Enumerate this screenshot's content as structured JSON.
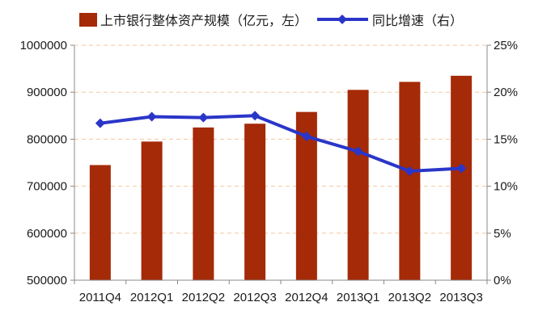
{
  "chart_data": {
    "type": "bar",
    "categories": [
      "2011Q4",
      "2012Q1",
      "2012Q2",
      "2012Q3",
      "2012Q4",
      "2013Q1",
      "2013Q2",
      "2013Q3"
    ],
    "series": [
      {
        "name": "上市银行整体资产规模（亿元，左）",
        "type": "bar",
        "axis": "left",
        "color": "#A52A08",
        "values": [
          745000,
          795000,
          825000,
          833000,
          858000,
          905000,
          922000,
          935000
        ]
      },
      {
        "name": "同比增速（右）",
        "type": "line",
        "axis": "right",
        "color": "#2A36C8",
        "marker": "diamond",
        "values": [
          16.7,
          17.4,
          17.3,
          17.5,
          15.3,
          13.7,
          11.6,
          11.9
        ]
      }
    ],
    "left_axis": {
      "ylim": [
        500000,
        1000000
      ],
      "ticks": [
        500000,
        600000,
        700000,
        800000,
        900000,
        1000000
      ],
      "tick_labels": [
        "500000",
        "600000",
        "700000",
        "800000",
        "900000",
        "1000000"
      ]
    },
    "right_axis": {
      "ylim": [
        0,
        25
      ],
      "ticks": [
        0,
        5,
        10,
        15,
        20,
        25
      ],
      "tick_labels": [
        "0%",
        "5%",
        "10%",
        "15%",
        "20%",
        "25%"
      ]
    },
    "grid": "horizontal dashed",
    "legend_position": "top"
  }
}
